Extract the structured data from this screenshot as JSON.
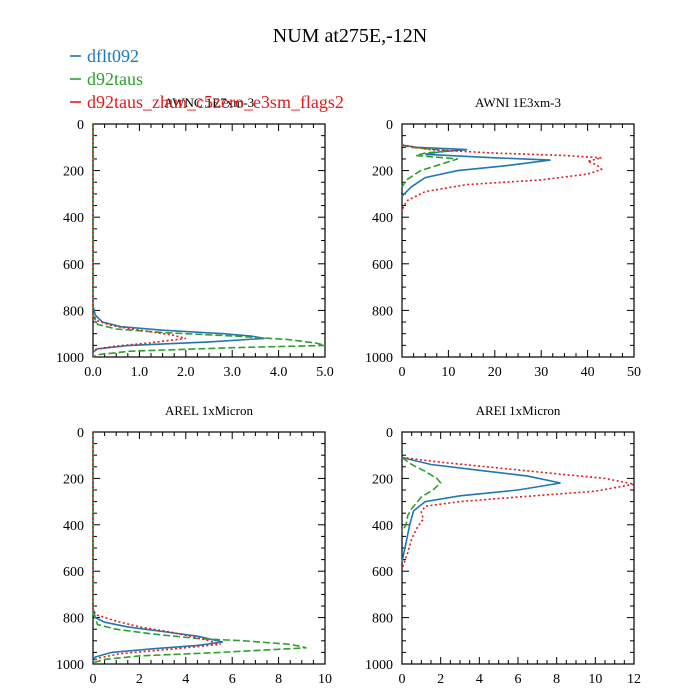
{
  "colors": {
    "dflt092": "#1f77b4",
    "d92taus": "#2ca02c",
    "zhun": "#e41a1c",
    "axis": "#000000"
  },
  "title": "NUM at275E,-12N",
  "legend": [
    {
      "label": "dflt092",
      "color": "#1f77b4",
      "dash": "solid"
    },
    {
      "label": "d92taus",
      "color": "#2ca02c",
      "dash": "dashed"
    },
    {
      "label": "d92taus_zhun_c5zero_e3sm_flags2",
      "color": "#e41a1c",
      "dash": "dotted"
    }
  ],
  "chart_data": [
    {
      "type": "line",
      "title": "AWNC  1E7xm-3",
      "xlim": [
        0,
        5
      ],
      "xticks": [
        "0.0",
        "1.0",
        "2.0",
        "3.0",
        "4.0",
        "5.0"
      ],
      "ylim": [
        1000,
        0
      ],
      "yticks": [
        "0",
        "200",
        "400",
        "600",
        "800",
        "1000"
      ],
      "series": [
        {
          "name": "dflt092",
          "points": [
            [
              0,
              0
            ],
            [
              0,
              780
            ],
            [
              0.05,
              820
            ],
            [
              0.2,
              850
            ],
            [
              0.6,
              870
            ],
            [
              1.5,
              885
            ],
            [
              2.8,
              900
            ],
            [
              3.4,
              910
            ],
            [
              3.7,
              920
            ],
            [
              2.5,
              935
            ],
            [
              0.8,
              950
            ],
            [
              0.1,
              965
            ],
            [
              0,
              980
            ],
            [
              0,
              1000
            ]
          ]
        },
        {
          "name": "d92taus",
          "points": [
            [
              0,
              0
            ],
            [
              0,
              820
            ],
            [
              0.1,
              860
            ],
            [
              0.5,
              880
            ],
            [
              1.5,
              895
            ],
            [
              3.0,
              910
            ],
            [
              4.2,
              925
            ],
            [
              4.8,
              940
            ],
            [
              5.0,
              950
            ],
            [
              3.0,
              960
            ],
            [
              0.8,
              975
            ],
            [
              0.1,
              990
            ],
            [
              0,
              1000
            ]
          ]
        },
        {
          "name": "d92taus_zhun_c5zero_e3sm_flags2",
          "points": [
            [
              0,
              0
            ],
            [
              0,
              820
            ],
            [
              0.1,
              845
            ],
            [
              0.4,
              865
            ],
            [
              1.0,
              885
            ],
            [
              1.7,
              905
            ],
            [
              2.0,
              920
            ],
            [
              1.2,
              940
            ],
            [
              0.4,
              955
            ],
            [
              0,
              970
            ],
            [
              0,
              1000
            ]
          ]
        }
      ]
    },
    {
      "type": "line",
      "title": "AWNI  1E3xm-3",
      "xlim": [
        0,
        50
      ],
      "xticks": [
        "0",
        "10",
        "20",
        "30",
        "40",
        "50"
      ],
      "ylim": [
        1000,
        0
      ],
      "yticks": [
        "0",
        "200",
        "400",
        "600",
        "800",
        "1000"
      ],
      "series": [
        {
          "name": "dflt092",
          "points": [
            [
              0,
              90
            ],
            [
              3,
              100
            ],
            [
              14,
              110
            ],
            [
              8,
              120
            ],
            [
              5,
              130
            ],
            [
              20,
              145
            ],
            [
              32,
              155
            ],
            [
              22,
              180
            ],
            [
              12,
              200
            ],
            [
              5,
              230
            ],
            [
              2,
              270
            ],
            [
              0,
              310
            ]
          ]
        },
        {
          "name": "d92taus",
          "points": [
            [
              0,
              90
            ],
            [
              2,
              100
            ],
            [
              10,
              115
            ],
            [
              5,
              125
            ],
            [
              3,
              135
            ],
            [
              12,
              150
            ],
            [
              8,
              175
            ],
            [
              4,
              200
            ],
            [
              1,
              240
            ],
            [
              0,
              270
            ]
          ]
        },
        {
          "name": "d92taus_zhun_c5zero_e3sm_flags2",
          "points": [
            [
              0,
              90
            ],
            [
              6,
              110
            ],
            [
              20,
              125
            ],
            [
              35,
              135
            ],
            [
              43,
              145
            ],
            [
              40,
              160
            ],
            [
              42,
              175
            ],
            [
              43,
              195
            ],
            [
              40,
              215
            ],
            [
              30,
              240
            ],
            [
              14,
              260
            ],
            [
              5,
              290
            ],
            [
              1,
              330
            ],
            [
              0,
              370
            ]
          ]
        }
      ]
    },
    {
      "type": "line",
      "title": "AREL  1xMicron",
      "xlim": [
        0,
        10
      ],
      "xticks": [
        "0",
        "2",
        "4",
        "6",
        "8",
        "10"
      ],
      "ylim": [
        1000,
        0
      ],
      "yticks": [
        "0",
        "200",
        "400",
        "600",
        "800",
        "1000"
      ],
      "series": [
        {
          "name": "dflt092",
          "points": [
            [
              0,
              0
            ],
            [
              0,
              490
            ],
            [
              0,
              760
            ],
            [
              0.1,
              800
            ],
            [
              0.5,
              820
            ],
            [
              1.5,
              840
            ],
            [
              3.0,
              860
            ],
            [
              4.5,
              880
            ],
            [
              5.6,
              905
            ],
            [
              4.5,
              920
            ],
            [
              2.5,
              935
            ],
            [
              0.8,
              950
            ],
            [
              0.1,
              970
            ],
            [
              0,
              990
            ]
          ]
        },
        {
          "name": "d92taus",
          "points": [
            [
              0,
              0
            ],
            [
              0,
              780
            ],
            [
              0.2,
              830
            ],
            [
              1.0,
              850
            ],
            [
              2.5,
              870
            ],
            [
              4.5,
              890
            ],
            [
              6.5,
              900
            ],
            [
              8.5,
              915
            ],
            [
              9.2,
              930
            ],
            [
              5.5,
              950
            ],
            [
              2.0,
              965
            ],
            [
              0.5,
              980
            ],
            [
              0,
              995
            ]
          ]
        },
        {
          "name": "d92taus_zhun_c5zero_e3sm_flags2",
          "points": [
            [
              0,
              0
            ],
            [
              0,
              770
            ],
            [
              0.2,
              790
            ],
            [
              1.0,
              815
            ],
            [
              2.0,
              840
            ],
            [
              3.2,
              860
            ],
            [
              4.2,
              880
            ],
            [
              5.0,
              900
            ],
            [
              5.5,
              915
            ],
            [
              3.5,
              935
            ],
            [
              1.2,
              955
            ],
            [
              0.2,
              975
            ],
            [
              0,
              990
            ]
          ]
        }
      ]
    },
    {
      "type": "line",
      "title": "AREI  1xMicron",
      "xlim": [
        0,
        12
      ],
      "xticks": [
        "0",
        "2",
        "4",
        "6",
        "8",
        "10",
        "12"
      ],
      "ylim": [
        1000,
        0
      ],
      "yticks": [
        "0",
        "200",
        "400",
        "600",
        "800",
        "1000"
      ],
      "series": [
        {
          "name": "dflt092",
          "points": [
            [
              0,
              110
            ],
            [
              1.5,
              140
            ],
            [
              4,
              165
            ],
            [
              6.5,
              190
            ],
            [
              8.2,
              220
            ],
            [
              6,
              250
            ],
            [
              3,
              275
            ],
            [
              1.2,
              300
            ],
            [
              0.6,
              340
            ],
            [
              0.4,
              400
            ],
            [
              0.2,
              480
            ],
            [
              0,
              560
            ]
          ]
        },
        {
          "name": "d92taus",
          "points": [
            [
              0,
              110
            ],
            [
              0.5,
              140
            ],
            [
              1.2,
              170
            ],
            [
              1.8,
              200
            ],
            [
              2.0,
              220
            ],
            [
              1.6,
              250
            ],
            [
              1.0,
              280
            ],
            [
              0.5,
              330
            ],
            [
              0.3,
              360
            ],
            [
              0.2,
              400
            ],
            [
              0,
              430
            ]
          ]
        },
        {
          "name": "d92taus_zhun_c5zero_e3sm_flags2",
          "points": [
            [
              0,
              110
            ],
            [
              2,
              130
            ],
            [
              5,
              155
            ],
            [
              8,
              180
            ],
            [
              10.5,
              200
            ],
            [
              12,
              225
            ],
            [
              10,
              255
            ],
            [
              6,
              280
            ],
            [
              3,
              300
            ],
            [
              1.2,
              320
            ],
            [
              1.0,
              345
            ],
            [
              1.1,
              375
            ],
            [
              0.8,
              410
            ],
            [
              0.5,
              460
            ],
            [
              0.3,
              520
            ],
            [
              0,
              590
            ]
          ]
        }
      ]
    }
  ]
}
